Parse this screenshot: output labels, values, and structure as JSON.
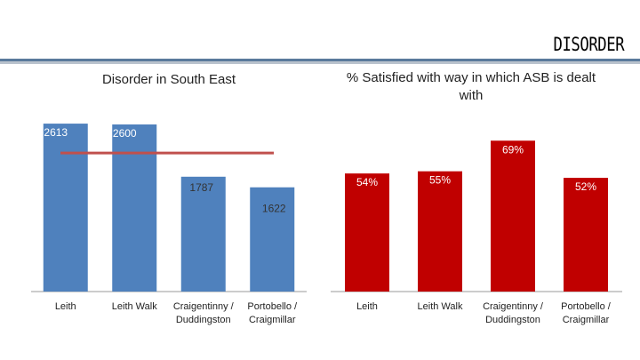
{
  "slide": {
    "title": "DISORDER"
  },
  "chart_data": [
    {
      "type": "bar",
      "title": "Disorder in South East",
      "categories": [
        "Leith",
        "Leith Walk",
        "Craigentinny / Duddingston",
        "Portobello / Craigmillar"
      ],
      "values": [
        2613,
        2600,
        1787,
        1622
      ],
      "data_labels": [
        "2613",
        "2600",
        "1787",
        "1622"
      ],
      "reference_line": {
        "value": 2156
      },
      "color": "#4f81bd",
      "line_color": "#c0504d"
    },
    {
      "type": "bar",
      "title": "% Satisfied with way in which ASB is dealt with",
      "categories": [
        "Leith",
        "Leith Walk",
        "Craigentinny / Duddingston",
        "Portobello / Craigmillar"
      ],
      "values": [
        54,
        55,
        69,
        52
      ],
      "data_labels": [
        "54%",
        "55%",
        "69%",
        "52%"
      ],
      "color": "#c00000"
    }
  ]
}
